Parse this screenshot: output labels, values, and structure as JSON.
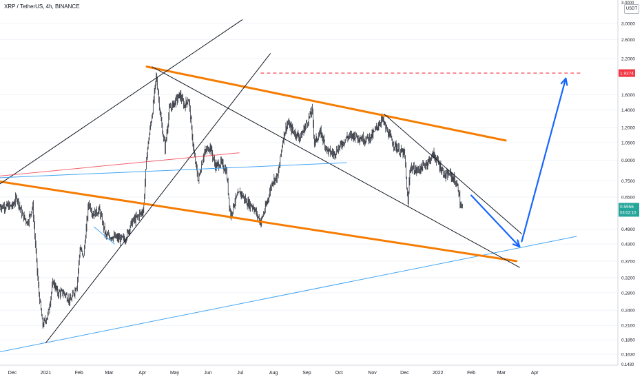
{
  "header": {
    "title": "XRP / TetherUS, 4h, BINANCE",
    "currency": "USDT"
  },
  "colors": {
    "orange": "#f57c00",
    "blue": "#1565ff",
    "light_blue": "#42a5f5",
    "red": "#f23645",
    "green": "#26a69a",
    "black": "#131722"
  },
  "chart_data": {
    "type": "candlestick",
    "title": "XRP / TetherUS, 4h, BINANCE",
    "y_scale": "log",
    "ylim": [
      0.143,
      4.0
    ],
    "y_ticks": [
      "3.0000",
      "2.6000",
      "2.2000",
      "1.9374",
      "1.6000",
      "1.4000",
      "1.2000",
      "1.0500",
      "0.9000",
      "0.7500",
      "0.6500",
      "0.5956",
      "0.4900",
      "0.4300",
      "0.3700",
      "0.3200",
      "0.2800",
      "0.2400",
      "0.2100",
      "0.1850",
      "0.1630"
    ],
    "y_tick_values": [
      3.0,
      2.6,
      2.2,
      1.6,
      1.4,
      1.2,
      1.05,
      0.9,
      0.75,
      0.65,
      0.49,
      0.43,
      0.37,
      0.32,
      0.28,
      0.24,
      0.21,
      0.185,
      0.163
    ],
    "y_top_label": "3.0000",
    "y_bottom_label": "0.1430",
    "x_ticks": [
      "Dec",
      "2021",
      "Feb",
      "Mar",
      "Apr",
      "May",
      "Jun",
      "Jul",
      "Aug",
      "Sep",
      "Oct",
      "Nov",
      "Dec",
      "2022",
      "Feb",
      "Mar",
      "Apr"
    ],
    "price_path": [
      [
        "2020-12-01",
        0.6
      ],
      [
        "2020-12-05",
        0.65
      ],
      [
        "2020-12-10",
        0.56
      ],
      [
        "2020-12-15",
        0.52
      ],
      [
        "2020-12-20",
        0.6
      ],
      [
        "2020-12-22",
        0.45
      ],
      [
        "2020-12-25",
        0.3
      ],
      [
        "2020-12-29",
        0.21
      ],
      [
        "2021-01-03",
        0.23
      ],
      [
        "2021-01-08",
        0.31
      ],
      [
        "2021-01-12",
        0.28
      ],
      [
        "2021-01-18",
        0.28
      ],
      [
        "2021-01-24",
        0.26
      ],
      [
        "2021-01-30",
        0.3
      ],
      [
        "2021-02-02",
        0.42
      ],
      [
        "2021-02-05",
        0.38
      ],
      [
        "2021-02-10",
        0.62
      ],
      [
        "2021-02-14",
        0.56
      ],
      [
        "2021-02-20",
        0.58
      ],
      [
        "2021-02-26",
        0.46
      ],
      [
        "2021-03-04",
        0.46
      ],
      [
        "2021-03-10",
        0.45
      ],
      [
        "2021-03-16",
        0.45
      ],
      [
        "2021-03-22",
        0.52
      ],
      [
        "2021-03-28",
        0.55
      ],
      [
        "2021-04-02",
        0.58
      ],
      [
        "2021-04-05",
        0.95
      ],
      [
        "2021-04-10",
        1.35
      ],
      [
        "2021-04-14",
        1.9
      ],
      [
        "2021-04-18",
        1.3
      ],
      [
        "2021-04-22",
        1.0
      ],
      [
        "2021-04-26",
        1.4
      ],
      [
        "2021-05-01",
        1.5
      ],
      [
        "2021-05-06",
        1.6
      ],
      [
        "2021-05-10",
        1.45
      ],
      [
        "2021-05-14",
        1.55
      ],
      [
        "2021-05-19",
        0.95
      ],
      [
        "2021-05-23",
        0.75
      ],
      [
        "2021-05-28",
        0.95
      ],
      [
        "2021-06-03",
        1.02
      ],
      [
        "2021-06-08",
        0.85
      ],
      [
        "2021-06-13",
        0.88
      ],
      [
        "2021-06-18",
        0.82
      ],
      [
        "2021-06-22",
        0.55
      ],
      [
        "2021-06-26",
        0.63
      ],
      [
        "2021-07-01",
        0.68
      ],
      [
        "2021-07-07",
        0.62
      ],
      [
        "2021-07-13",
        0.6
      ],
      [
        "2021-07-20",
        0.52
      ],
      [
        "2021-07-25",
        0.6
      ],
      [
        "2021-07-31",
        0.75
      ],
      [
        "2021-08-05",
        0.78
      ],
      [
        "2021-08-10",
        1.1
      ],
      [
        "2021-08-14",
        1.25
      ],
      [
        "2021-08-20",
        1.15
      ],
      [
        "2021-08-26",
        1.1
      ],
      [
        "2021-09-01",
        1.25
      ],
      [
        "2021-09-06",
        1.4
      ],
      [
        "2021-09-08",
        1.05
      ],
      [
        "2021-09-14",
        1.15
      ],
      [
        "2021-09-20",
        0.98
      ],
      [
        "2021-09-26",
        0.95
      ],
      [
        "2021-10-02",
        1.02
      ],
      [
        "2021-10-08",
        1.1
      ],
      [
        "2021-10-14",
        1.12
      ],
      [
        "2021-10-20",
        1.1
      ],
      [
        "2021-10-26",
        1.08
      ],
      [
        "2021-11-01",
        1.12
      ],
      [
        "2021-11-06",
        1.22
      ],
      [
        "2021-11-10",
        1.3
      ],
      [
        "2021-11-14",
        1.18
      ],
      [
        "2021-11-20",
        1.05
      ],
      [
        "2021-11-26",
        0.98
      ],
      [
        "2021-12-01",
        0.95
      ],
      [
        "2021-12-04",
        0.6
      ],
      [
        "2021-12-06",
        0.85
      ],
      [
        "2021-12-12",
        0.82
      ],
      [
        "2021-12-18",
        0.85
      ],
      [
        "2021-12-24",
        0.9
      ],
      [
        "2021-12-28",
        0.95
      ],
      [
        "2022-01-03",
        0.85
      ],
      [
        "2022-01-08",
        0.78
      ],
      [
        "2022-01-12",
        0.8
      ],
      [
        "2022-01-16",
        0.76
      ],
      [
        "2022-01-20",
        0.7
      ],
      [
        "2022-01-22",
        0.6
      ],
      [
        "2022-01-24",
        0.59
      ]
    ],
    "trend_lines": [
      {
        "name": "upper-orange-channel",
        "color": "orange",
        "from": [
          "2021-04-05",
          2.05
        ],
        "to": [
          "2022-03-05",
          1.07
        ]
      },
      {
        "name": "lower-orange-channel",
        "color": "orange",
        "from": [
          "2020-11-15",
          0.75
        ],
        "to": [
          "2022-03-15",
          0.37
        ]
      },
      {
        "name": "rising-channel-upper",
        "color": "black",
        "from": [
          "2020-11-15",
          0.71
        ],
        "to": [
          "2021-07-03",
          3.1
        ]
      },
      {
        "name": "rising-channel-lower",
        "color": "black",
        "from": [
          "2021-01-01",
          0.18
        ],
        "to": [
          "2021-07-29",
          2.3
        ]
      },
      {
        "name": "falling-channel-lower",
        "color": "black",
        "from": [
          "2021-04-10",
          2.05
        ],
        "to": [
          "2022-03-18",
          0.35
        ]
      },
      {
        "name": "falling-channel-upper",
        "color": "black",
        "from": [
          "2021-11-12",
          1.35
        ],
        "to": [
          "2022-03-20",
          0.47
        ]
      },
      {
        "name": "red-trend",
        "color": "red",
        "from": [
          "2020-11-15",
          0.78
        ],
        "to": [
          "2021-06-30",
          0.96
        ]
      },
      {
        "name": "light-blue-trend",
        "color": "light_blue",
        "from": [
          "2020-11-15",
          0.77
        ],
        "to": [
          "2021-10-08",
          0.88
        ]
      },
      {
        "name": "long-support",
        "color": "light_blue",
        "from": [
          "2020-11-15",
          0.165
        ],
        "to": [
          "2022-05-10",
          0.46
        ]
      },
      {
        "name": "small-blue-trend",
        "color": "light_blue",
        "from": [
          "2021-02-15",
          0.5
        ],
        "to": [
          "2021-03-06",
          0.43
        ]
      }
    ],
    "arrows": [
      {
        "name": "down-arrow",
        "from": [
          "2022-02-01",
          0.66
        ],
        "to": [
          "2022-03-18",
          0.42
        ]
      },
      {
        "name": "up-arrow",
        "from": [
          "2022-03-20",
          0.44
        ],
        "to": [
          "2022-04-30",
          1.85
        ]
      }
    ],
    "target_line": {
      "value": 1.9374,
      "label": "1.9374",
      "from": "2021-07-20",
      "to": "2022-05-15"
    },
    "current_price": {
      "value": 0.5956,
      "label": "0.5956",
      "countdown": "03:02:10"
    }
  }
}
